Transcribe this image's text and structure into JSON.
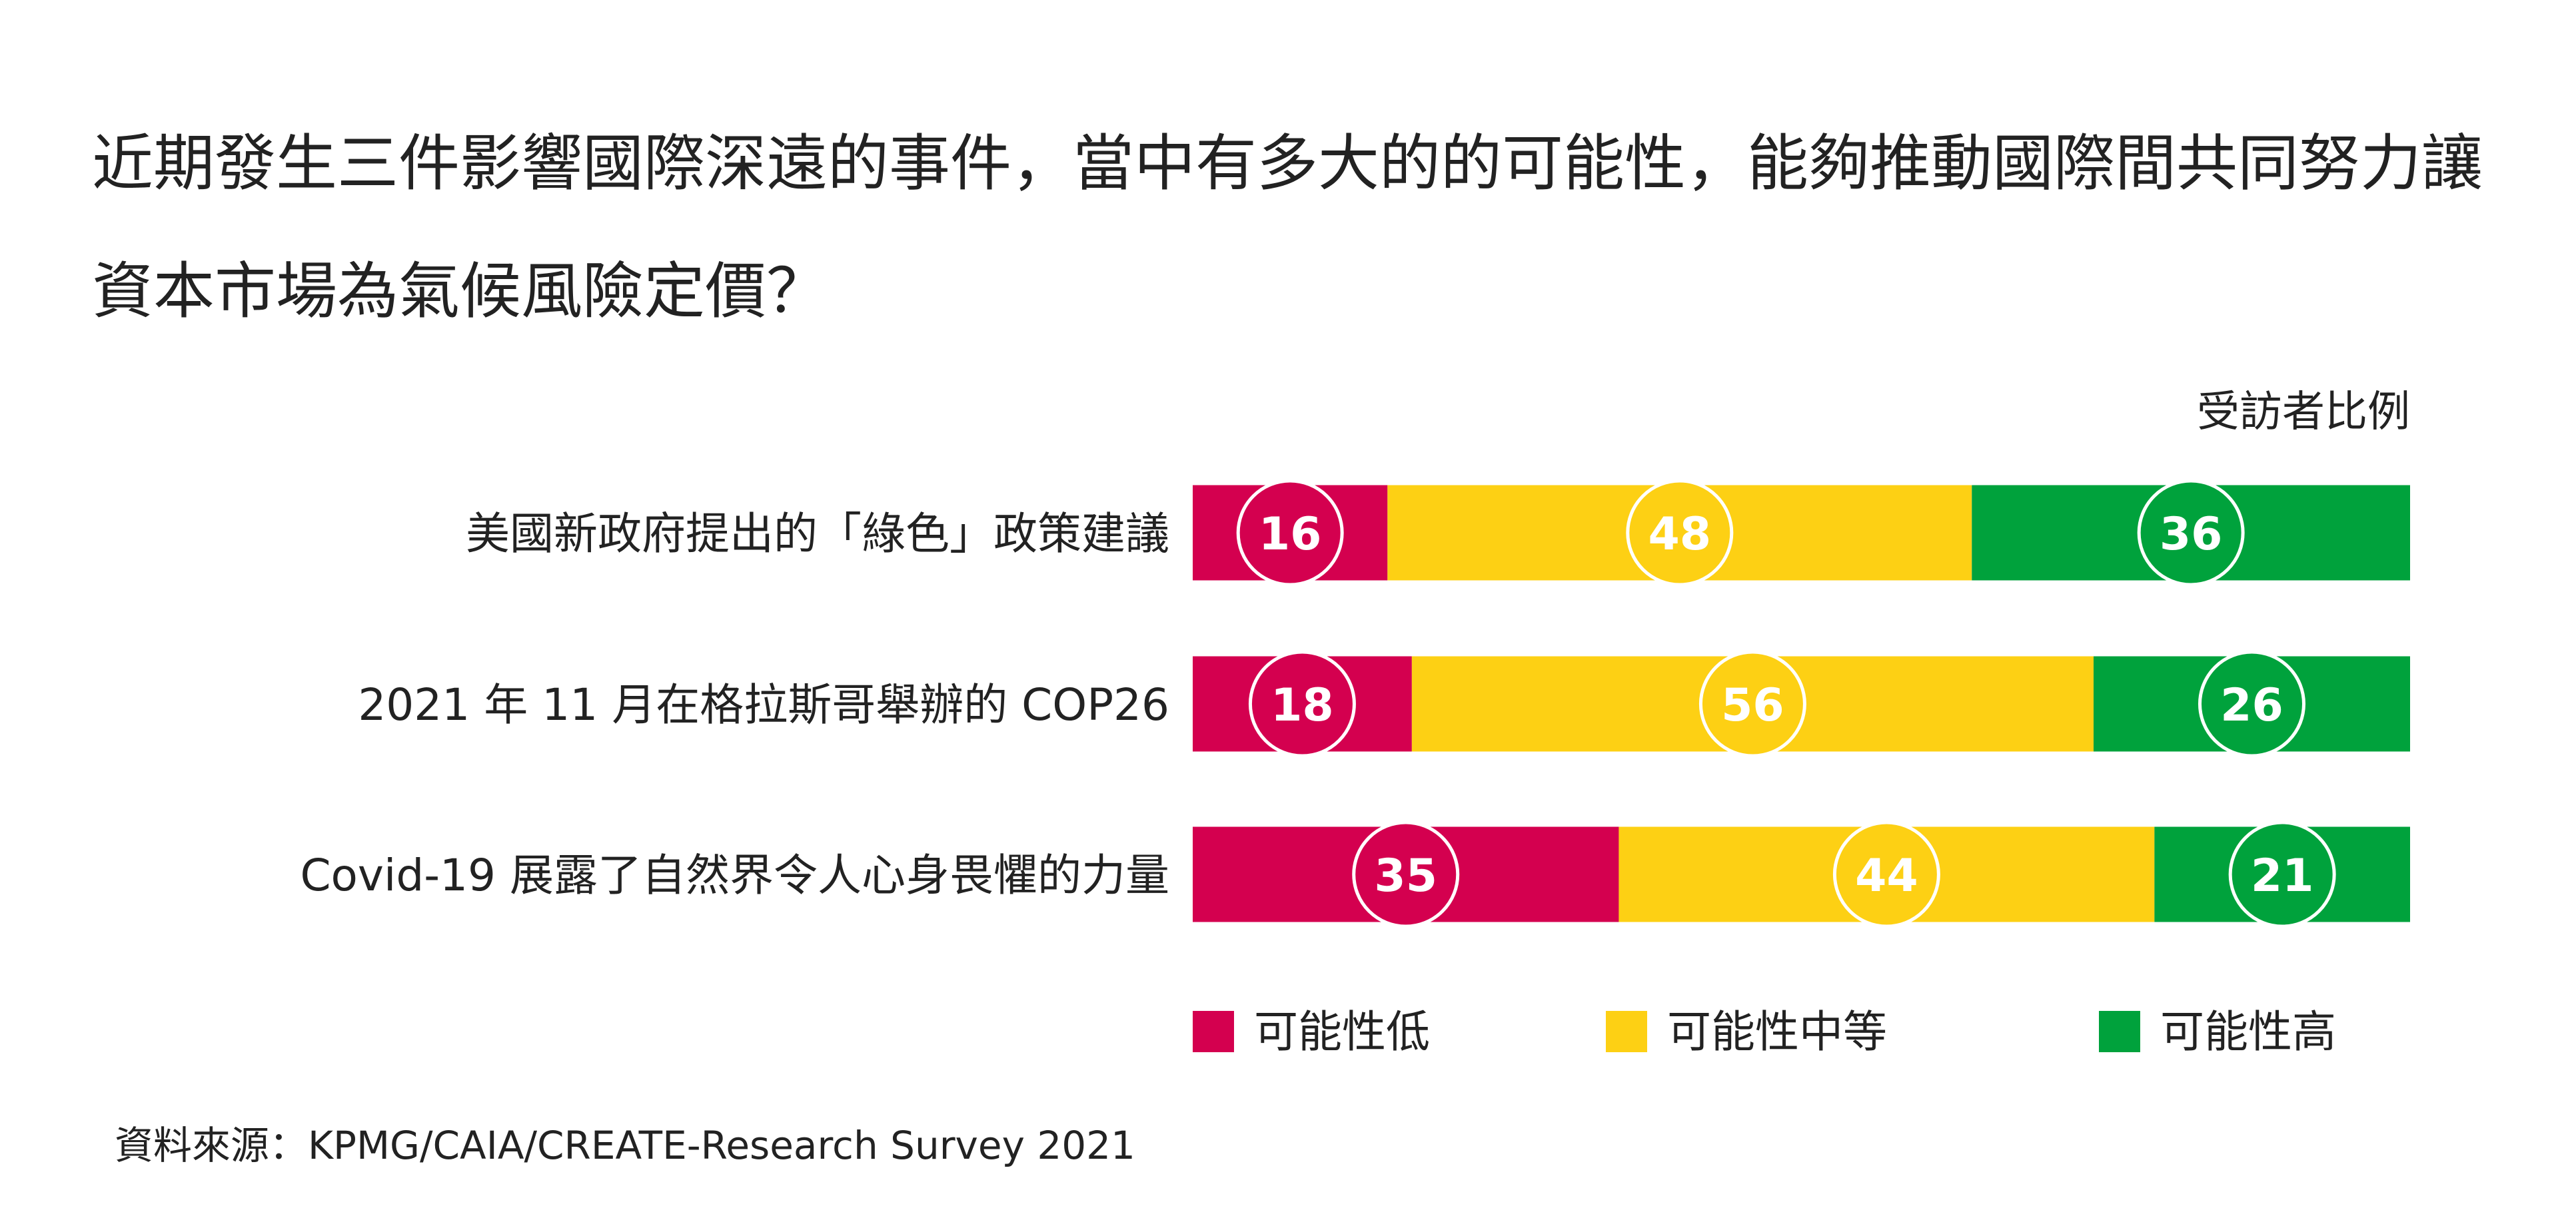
{
  "title": "近期發生三件影響國際深遠的事件，當中有多大的的可能性，能夠推動國際間共同努力讓資本市場為氣候風險定價？",
  "source": "資料來源：KPMG/CAIA/CREATE-Research Survey 2021",
  "colors": {
    "low": "#d4004f",
    "medium": "#fdd014",
    "high": "#00a23c",
    "text": "#222222",
    "label_text": "#ffffff"
  },
  "chart_data": {
    "type": "bar",
    "orientation": "horizontal",
    "stacked": true,
    "value_header": "受訪者比例",
    "categories": [
      "美國新政府提出的「綠色」政策建議",
      "2021 年 11 月在格拉斯哥舉辦的 COP26",
      "Covid-19 展露了自然界令人心身畏懼的力量"
    ],
    "xlim": [
      0,
      100
    ],
    "series": [
      {
        "name": "可能性低",
        "color": "#d4004f",
        "values": [
          16,
          18,
          35
        ]
      },
      {
        "name": "可能性中等",
        "color": "#fdd014",
        "values": [
          48,
          56,
          44
        ]
      },
      {
        "name": "可能性高",
        "color": "#00a23c",
        "values": [
          36,
          26,
          21
        ]
      }
    ],
    "data_labels": true,
    "legend_position": "bottom",
    "grid": false
  }
}
